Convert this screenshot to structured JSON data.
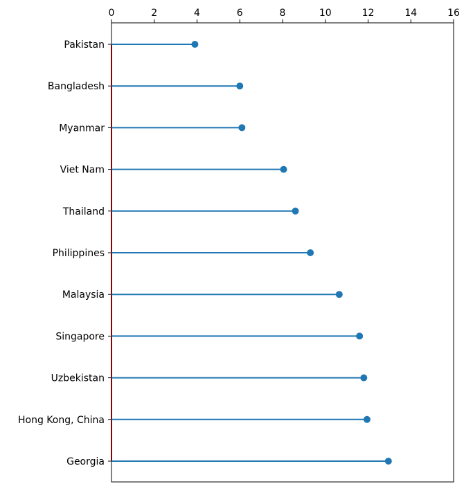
{
  "chart_data": {
    "type": "lollipop",
    "orientation": "horizontal",
    "categories": [
      "Pakistan",
      "Bangladesh",
      "Myanmar",
      "Viet Nam",
      "Thailand",
      "Philippines",
      "Malaysia",
      "Singapore",
      "Uzbekistan",
      "Hong Kong, China",
      "Georgia"
    ],
    "values": [
      3.9,
      6.0,
      6.1,
      8.05,
      8.6,
      9.3,
      10.65,
      11.6,
      11.8,
      11.95,
      12.95
    ],
    "xlim": [
      0,
      16
    ],
    "xticks": [
      0,
      2,
      4,
      6,
      8,
      10,
      12,
      14,
      16
    ],
    "xaxis_position": "top",
    "baseline_x": 0,
    "baseline_color": "#8b0000",
    "series_color": "#1f77b4",
    "grid": false,
    "title": "",
    "xlabel": "",
    "ylabel": ""
  }
}
